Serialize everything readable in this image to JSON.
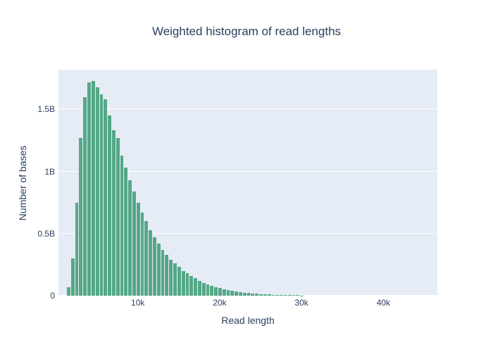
{
  "colors": {
    "plot_background": "#e5ecf6",
    "bar": "#54a886",
    "gridline": "#ffffff",
    "text": "#2a3f5f",
    "page_background": "#ffffff"
  },
  "chart_data": {
    "type": "bar",
    "title": "Weighted histogram of read lengths",
    "xlabel": "Read length",
    "ylabel": "Number of bases",
    "xlim": [
      300,
      46600
    ],
    "ylim": [
      0,
      1.82
    ],
    "grid": true,
    "legend": false,
    "bin_width": 500,
    "x_ticks": [
      {
        "value": 10000,
        "label": "10k"
      },
      {
        "value": 20000,
        "label": "20k"
      },
      {
        "value": 30000,
        "label": "30k"
      },
      {
        "value": 40000,
        "label": "40k"
      }
    ],
    "y_ticks": [
      {
        "value": 0,
        "label": "0"
      },
      {
        "value": 0.5,
        "label": "0.5B"
      },
      {
        "value": 1.0,
        "label": "1B"
      },
      {
        "value": 1.5,
        "label": "1.5B"
      }
    ],
    "y_unit": "billions of bases",
    "x": [
      1500,
      2000,
      2500,
      3000,
      3500,
      4000,
      4500,
      5000,
      5500,
      6000,
      6500,
      7000,
      7500,
      8000,
      8500,
      9000,
      9500,
      10000,
      10500,
      11000,
      11500,
      12000,
      12500,
      13000,
      13500,
      14000,
      14500,
      15000,
      15500,
      16000,
      16500,
      17000,
      17500,
      18000,
      18500,
      19000,
      19500,
      20000,
      20500,
      21000,
      21500,
      22000,
      22500,
      23000,
      23500,
      24000,
      24500,
      25000,
      25500,
      26000,
      26500,
      27000,
      27500,
      28000,
      28500,
      29000,
      29500,
      30000
    ],
    "values": [
      0.07,
      0.3,
      0.75,
      1.27,
      1.6,
      1.72,
      1.73,
      1.68,
      1.62,
      1.58,
      1.45,
      1.33,
      1.27,
      1.13,
      1.03,
      0.93,
      0.84,
      0.75,
      0.67,
      0.6,
      0.53,
      0.47,
      0.42,
      0.37,
      0.33,
      0.29,
      0.26,
      0.23,
      0.2,
      0.18,
      0.16,
      0.14,
      0.12,
      0.1,
      0.09,
      0.08,
      0.07,
      0.06,
      0.052,
      0.045,
      0.039,
      0.034,
      0.029,
      0.025,
      0.021,
      0.018,
      0.015,
      0.013,
      0.011,
      0.009,
      0.008,
      0.007,
      0.006,
      0.005,
      0.004,
      0.0035,
      0.003,
      0.0025
    ]
  }
}
